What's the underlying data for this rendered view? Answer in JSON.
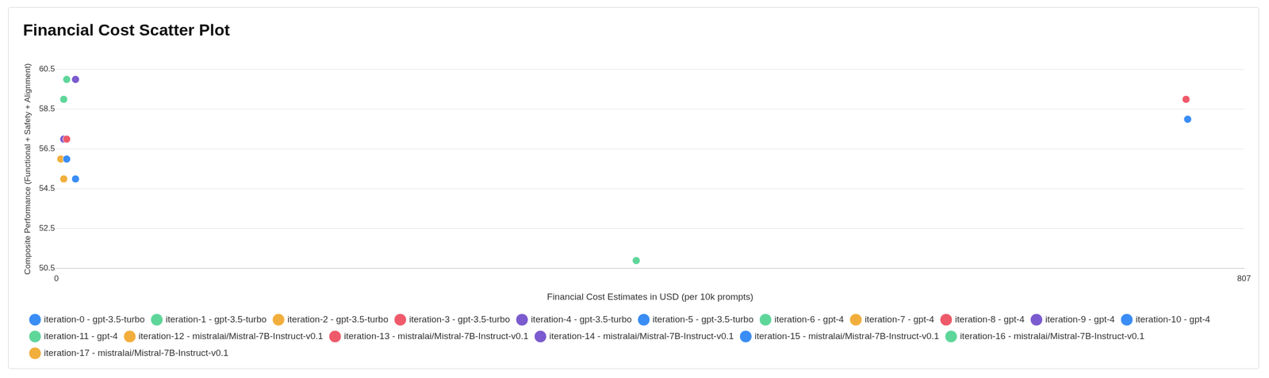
{
  "chart_data": {
    "type": "scatter",
    "title": "Financial Cost Scatter Plot",
    "x_label": "Financial Cost Estimates in USD (per 10k prompts)",
    "y_label": "Composite Performance (Functional + Safety + Alignment)",
    "xlim": [
      0,
      807
    ],
    "xticks": [
      0,
      807
    ],
    "ylim": [
      50.5,
      60.5
    ],
    "yticks": [
      50.5,
      52.5,
      54.5,
      56.5,
      58.5,
      60.5
    ],
    "grid": "y",
    "legend": "bottom",
    "marker": "circle",
    "series": [
      {
        "name": "iteration-0 - gpt-3.5-turbo",
        "color": "#3A8DF5",
        "x": [
          7
        ],
        "values": [
          56
        ]
      },
      {
        "name": "iteration-1 - gpt-3.5-turbo",
        "color": "#5ED69A",
        "x": [
          5
        ],
        "values": [
          59
        ]
      },
      {
        "name": "iteration-2 - gpt-3.5-turbo",
        "color": "#F2AE3C",
        "x": [
          3
        ],
        "values": [
          56
        ]
      },
      {
        "name": "iteration-3 - gpt-3.5-turbo",
        "color": "#EE5A6A",
        "x": [
          7
        ],
        "values": [
          57
        ]
      },
      {
        "name": "iteration-4 - gpt-3.5-turbo",
        "color": "#7B5BCF",
        "x": [
          5
        ],
        "values": [
          57
        ]
      },
      {
        "name": "iteration-5 - gpt-3.5-turbo",
        "color": "#3A8DF5",
        "x": [
          13
        ],
        "values": [
          55
        ]
      },
      {
        "name": "iteration-6 - gpt-4",
        "color": "#5ED69A",
        "x": [
          394
        ],
        "values": [
          50.9
        ]
      },
      {
        "name": "iteration-7 - gpt-4",
        "color": "#F2AE3C",
        "x": [],
        "values": []
      },
      {
        "name": "iteration-8 - gpt-4",
        "color": "#EE5A6A",
        "x": [
          767.6
        ],
        "values": [
          59
        ]
      },
      {
        "name": "iteration-9 - gpt-4",
        "color": "#7B5BCF",
        "x": [],
        "values": []
      },
      {
        "name": "iteration-10 - gpt-4",
        "color": "#3A8DF5",
        "x": [
          768.7
        ],
        "values": [
          58
        ]
      },
      {
        "name": "iteration-11 - gpt-4",
        "color": "#5ED69A",
        "x": [],
        "values": []
      },
      {
        "name": "iteration-12 - mistralai/Mistral-7B-Instruct-v0.1",
        "color": "#F2AE3C",
        "x": [
          5
        ],
        "values": [
          55
        ]
      },
      {
        "name": "iteration-13 - mistralai/Mistral-7B-Instruct-v0.1",
        "color": "#EE5A6A",
        "x": [],
        "values": []
      },
      {
        "name": "iteration-14 - mistralai/Mistral-7B-Instruct-v0.1",
        "color": "#7B5BCF",
        "x": [
          13
        ],
        "values": [
          60
        ]
      },
      {
        "name": "iteration-15 - mistralai/Mistral-7B-Instruct-v0.1",
        "color": "#3A8DF5",
        "x": [],
        "values": []
      },
      {
        "name": "iteration-16 - mistralai/Mistral-7B-Instruct-v0.1",
        "color": "#5ED69A",
        "x": [
          7
        ],
        "values": [
          60
        ]
      },
      {
        "name": "iteration-17 - mistralai/Mistral-7B-Instruct-v0.1",
        "color": "#F2AE3C",
        "x": [],
        "values": []
      }
    ]
  }
}
